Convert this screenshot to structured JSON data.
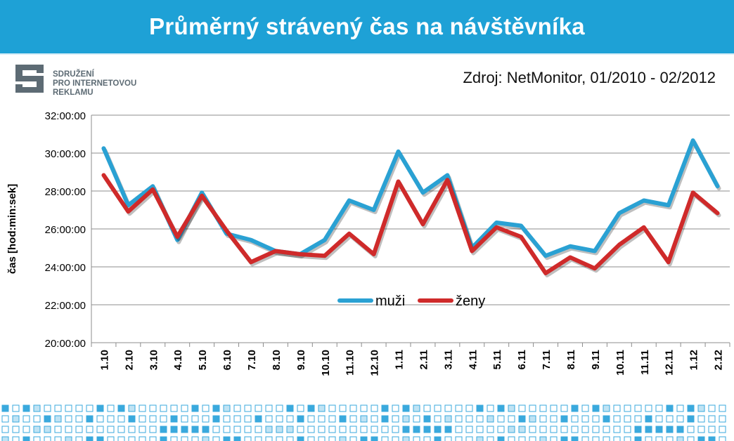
{
  "header": {
    "title": "Průměrný strávený čas na návštěvníka"
  },
  "logo": {
    "lines": [
      "SDRUŽENÍ",
      "PRO INTERNETOVOU",
      "REKLAMU"
    ]
  },
  "source": "Zdroj: NetMonitor, 01/2010 - 02/2012",
  "colors": {
    "title_bar": "#1ea1d6",
    "muzi": "#2aa1d3",
    "zeny": "#cf2a2a",
    "pattern": "#3aa9dd"
  },
  "chart_data": {
    "type": "line",
    "title": "Průměrný strávený čas na návštěvníka",
    "xlabel": "",
    "ylabel": "čas [hod:min:sek]",
    "ylim": [
      "20:00:00",
      "32:00:00"
    ],
    "yticks": [
      "20:00:00",
      "22:00:00",
      "24:00:00",
      "26:00:00",
      "28:00:00",
      "30:00:00",
      "32:00:00"
    ],
    "grid": true,
    "legend": "inside-bottom-center",
    "categories": [
      "1.10",
      "2.10",
      "3.10",
      "4.10",
      "5.10",
      "6.10",
      "7.10",
      "8.10",
      "9.10",
      "10.10",
      "11.10",
      "12.10",
      "1.11",
      "2.11",
      "3.11",
      "4.11",
      "5.11",
      "6.11",
      "7.11",
      "8.11",
      "9.11",
      "10.11",
      "11.11",
      "12.11",
      "1.12",
      "2.12"
    ],
    "series": [
      {
        "name": "muži",
        "values": [
          "30:15:00",
          "27:15:00",
          "28:15:00",
          "25:25:00",
          "27:55:00",
          "25:45:00",
          "25:25:00",
          "24:50:00",
          "24:40:00",
          "25:25:00",
          "27:30:00",
          "27:00:00",
          "30:05:00",
          "27:55:00",
          "28:50:00",
          "25:00:00",
          "26:20:00",
          "26:10:00",
          "24:35:00",
          "25:05:00",
          "24:50:00",
          "26:50:00",
          "27:30:00",
          "27:15:00",
          "30:40:00",
          "28:15:00"
        ]
      },
      {
        "name": "ženy",
        "values": [
          "28:50:00",
          "26:55:00",
          "28:05:00",
          "25:35:00",
          "27:45:00",
          "25:55:00",
          "24:15:00",
          "24:50:00",
          "24:40:00",
          "24:35:00",
          "25:45:00",
          "24:40:00",
          "28:30:00",
          "26:15:00",
          "28:35:00",
          "24:50:00",
          "26:05:00",
          "25:35:00",
          "23:40:00",
          "24:30:00",
          "23:55:00",
          "25:10:00",
          "26:05:00",
          "24:15:00",
          "27:55:00",
          "26:50:00"
        ]
      }
    ]
  }
}
